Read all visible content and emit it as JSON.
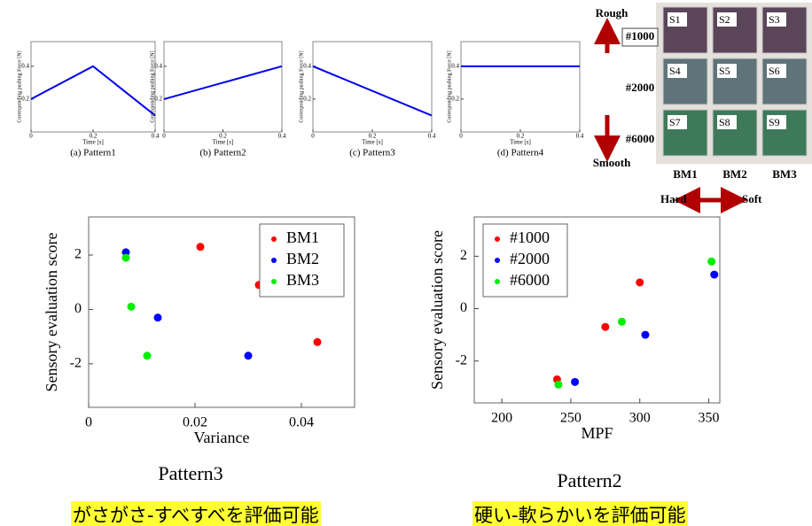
{
  "chart_data": [
    {
      "type": "line",
      "xlabel": "Time [s]",
      "ylabel": "Corresponding pushing Force [N]",
      "caption": "(a) Pattern1",
      "x": [
        0,
        0.2,
        0.4
      ],
      "values": [
        0.2,
        0.4,
        0.1
      ],
      "color": "#0000ee",
      "xlim": [
        0,
        0.4
      ],
      "ylim": [
        0,
        0.55
      ],
      "xticks": [
        0,
        0.2,
        0.4
      ],
      "yticks": [
        0.2,
        0.4
      ]
    },
    {
      "type": "line",
      "xlabel": "Time [s]",
      "ylabel": "Corresponding pushing Force [N]",
      "caption": "(b) Pattern2",
      "x": [
        0,
        0.4
      ],
      "values": [
        0.2,
        0.4
      ],
      "color": "#0000ee",
      "xlim": [
        0,
        0.4
      ],
      "ylim": [
        0,
        0.55
      ],
      "xticks": [
        0,
        0.2,
        0.4
      ],
      "yticks": [
        0.2,
        0.4
      ]
    },
    {
      "type": "line",
      "xlabel": "Time [s]",
      "ylabel": "Corresponding pushing Force [N]",
      "caption": "(c) Pattern3",
      "x": [
        0,
        0.4
      ],
      "values": [
        0.4,
        0.1
      ],
      "color": "#0000ee",
      "xlim": [
        0,
        0.4
      ],
      "ylim": [
        0,
        0.55
      ],
      "xticks": [
        0,
        0.2,
        0.4
      ],
      "yticks": [
        0.2,
        0.4
      ]
    },
    {
      "type": "line",
      "xlabel": "Time [s]",
      "ylabel": "Corresponding pushing Force [N]",
      "caption": "(d) Pattern4",
      "x": [
        0,
        0.4
      ],
      "values": [
        0.4,
        0.4
      ],
      "color": "#0000ee",
      "xlim": [
        0,
        0.4
      ],
      "ylim": [
        0,
        0.55
      ],
      "xticks": [
        0,
        0.2,
        0.4
      ],
      "yticks": [
        0.2,
        0.4
      ]
    },
    {
      "type": "scatter",
      "xlabel": "Variance",
      "ylabel": "Sensory evaluation score",
      "caption": "Pattern3",
      "xlim": [
        0,
        0.05
      ],
      "ylim": [
        -3.6,
        3.4
      ],
      "xticks": [
        0,
        0.02,
        0.04
      ],
      "yticks": [
        -2,
        0,
        2
      ],
      "legend": "upper-right",
      "series": [
        {
          "name": "BM1",
          "color": "#ff0000",
          "x": [
            0.021,
            0.032,
            0.043
          ],
          "values": [
            2.3,
            0.9,
            -1.2
          ]
        },
        {
          "name": "BM2",
          "color": "#0000ff",
          "x": [
            0.007,
            0.013,
            0.03
          ],
          "values": [
            2.1,
            -0.3,
            -1.7
          ]
        },
        {
          "name": "BM3",
          "color": "#00ee00",
          "x": [
            0.007,
            0.008,
            0.011
          ],
          "values": [
            1.9,
            0.1,
            -1.7
          ]
        }
      ]
    },
    {
      "type": "scatter",
      "xlabel": "MPF",
      "ylabel": "Sensory evaluation score",
      "caption": "Pattern2",
      "xlim": [
        180,
        358
      ],
      "ylim": [
        -3.6,
        3.5
      ],
      "xticks": [
        200,
        250,
        300,
        350
      ],
      "yticks": [
        -2,
        0,
        2
      ],
      "legend": "upper-left",
      "series": [
        {
          "name": "#1000",
          "color": "#ff0000",
          "x": [
            240,
            275,
            300
          ],
          "values": [
            -2.7,
            -0.7,
            1.0
          ]
        },
        {
          "name": "#2000",
          "color": "#0000ff",
          "x": [
            253,
            304,
            354
          ],
          "values": [
            -2.8,
            -1.0,
            1.3
          ]
        },
        {
          "name": "#6000",
          "color": "#00ee00",
          "x": [
            241,
            287,
            352
          ],
          "values": [
            -2.9,
            -0.5,
            1.8
          ]
        }
      ]
    }
  ],
  "sample_panel": {
    "rough": "Rough",
    "smooth": "Smooth",
    "grits": [
      "#1000",
      "#2000",
      "#6000"
    ],
    "samples": [
      "S1",
      "S2",
      "S3",
      "S4",
      "S5",
      "S6",
      "S7",
      "S8",
      "S9"
    ],
    "materials": [
      "BM1",
      "BM2",
      "BM3"
    ],
    "hard": "Hard",
    "soft": "Soft"
  },
  "notes": [
    "がさがさ-すべすべを評価可能",
    "硬い-軟らかいを評価可能"
  ]
}
